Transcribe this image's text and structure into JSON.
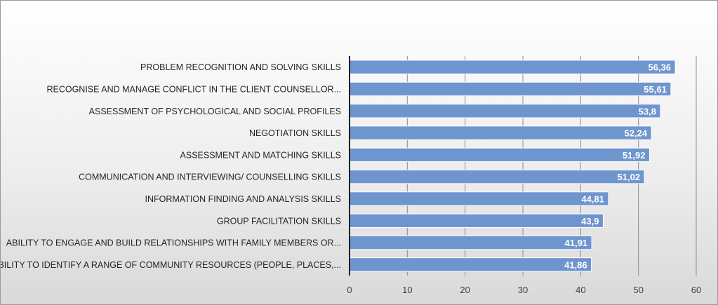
{
  "chart_data": {
    "type": "bar",
    "orientation": "horizontal",
    "title": "",
    "xlabel": "",
    "ylabel": "",
    "xlim": [
      0,
      60
    ],
    "ticks": [
      0,
      10,
      20,
      30,
      40,
      50,
      60
    ],
    "grid": "vertical",
    "legend": "none",
    "bar_color": "#6f95cf",
    "categories": [
      "PROBLEM RECOGNITION AND SOLVING SKILLS",
      "RECOGNISE AND MANAGE CONFLICT IN THE CLIENT COUNSELLOR...",
      "ASSESSMENT OF PSYCHOLOGICAL AND SOCIAL PROFILES",
      "NEGOTIATION SKILLS",
      "ASSESSMENT AND MATCHING SKILLS",
      "COMMUNICATION AND INTERVIEWING/ COUNSELLING SKILLS",
      "INFORMATION FINDING AND ANALYSIS SKILLS",
      "GROUP FACILITATION SKILLS",
      "ABILITY TO ENGAGE AND BUILD RELATIONSHIPS WITH FAMILY MEMBERS OR...",
      "ABILITY TO IDENTIFY A RANGE OF COMMUNITY RESOURCES (PEOPLE, PLACES,..."
    ],
    "values": [
      56.36,
      55.61,
      53.8,
      52.24,
      51.92,
      51.02,
      44.81,
      43.9,
      41.91,
      41.86
    ],
    "data_labels": [
      "56,36",
      "55,61",
      "53,8",
      "52,24",
      "51,92",
      "51,02",
      "44,81",
      "43,9",
      "41,91",
      "41,86"
    ]
  }
}
